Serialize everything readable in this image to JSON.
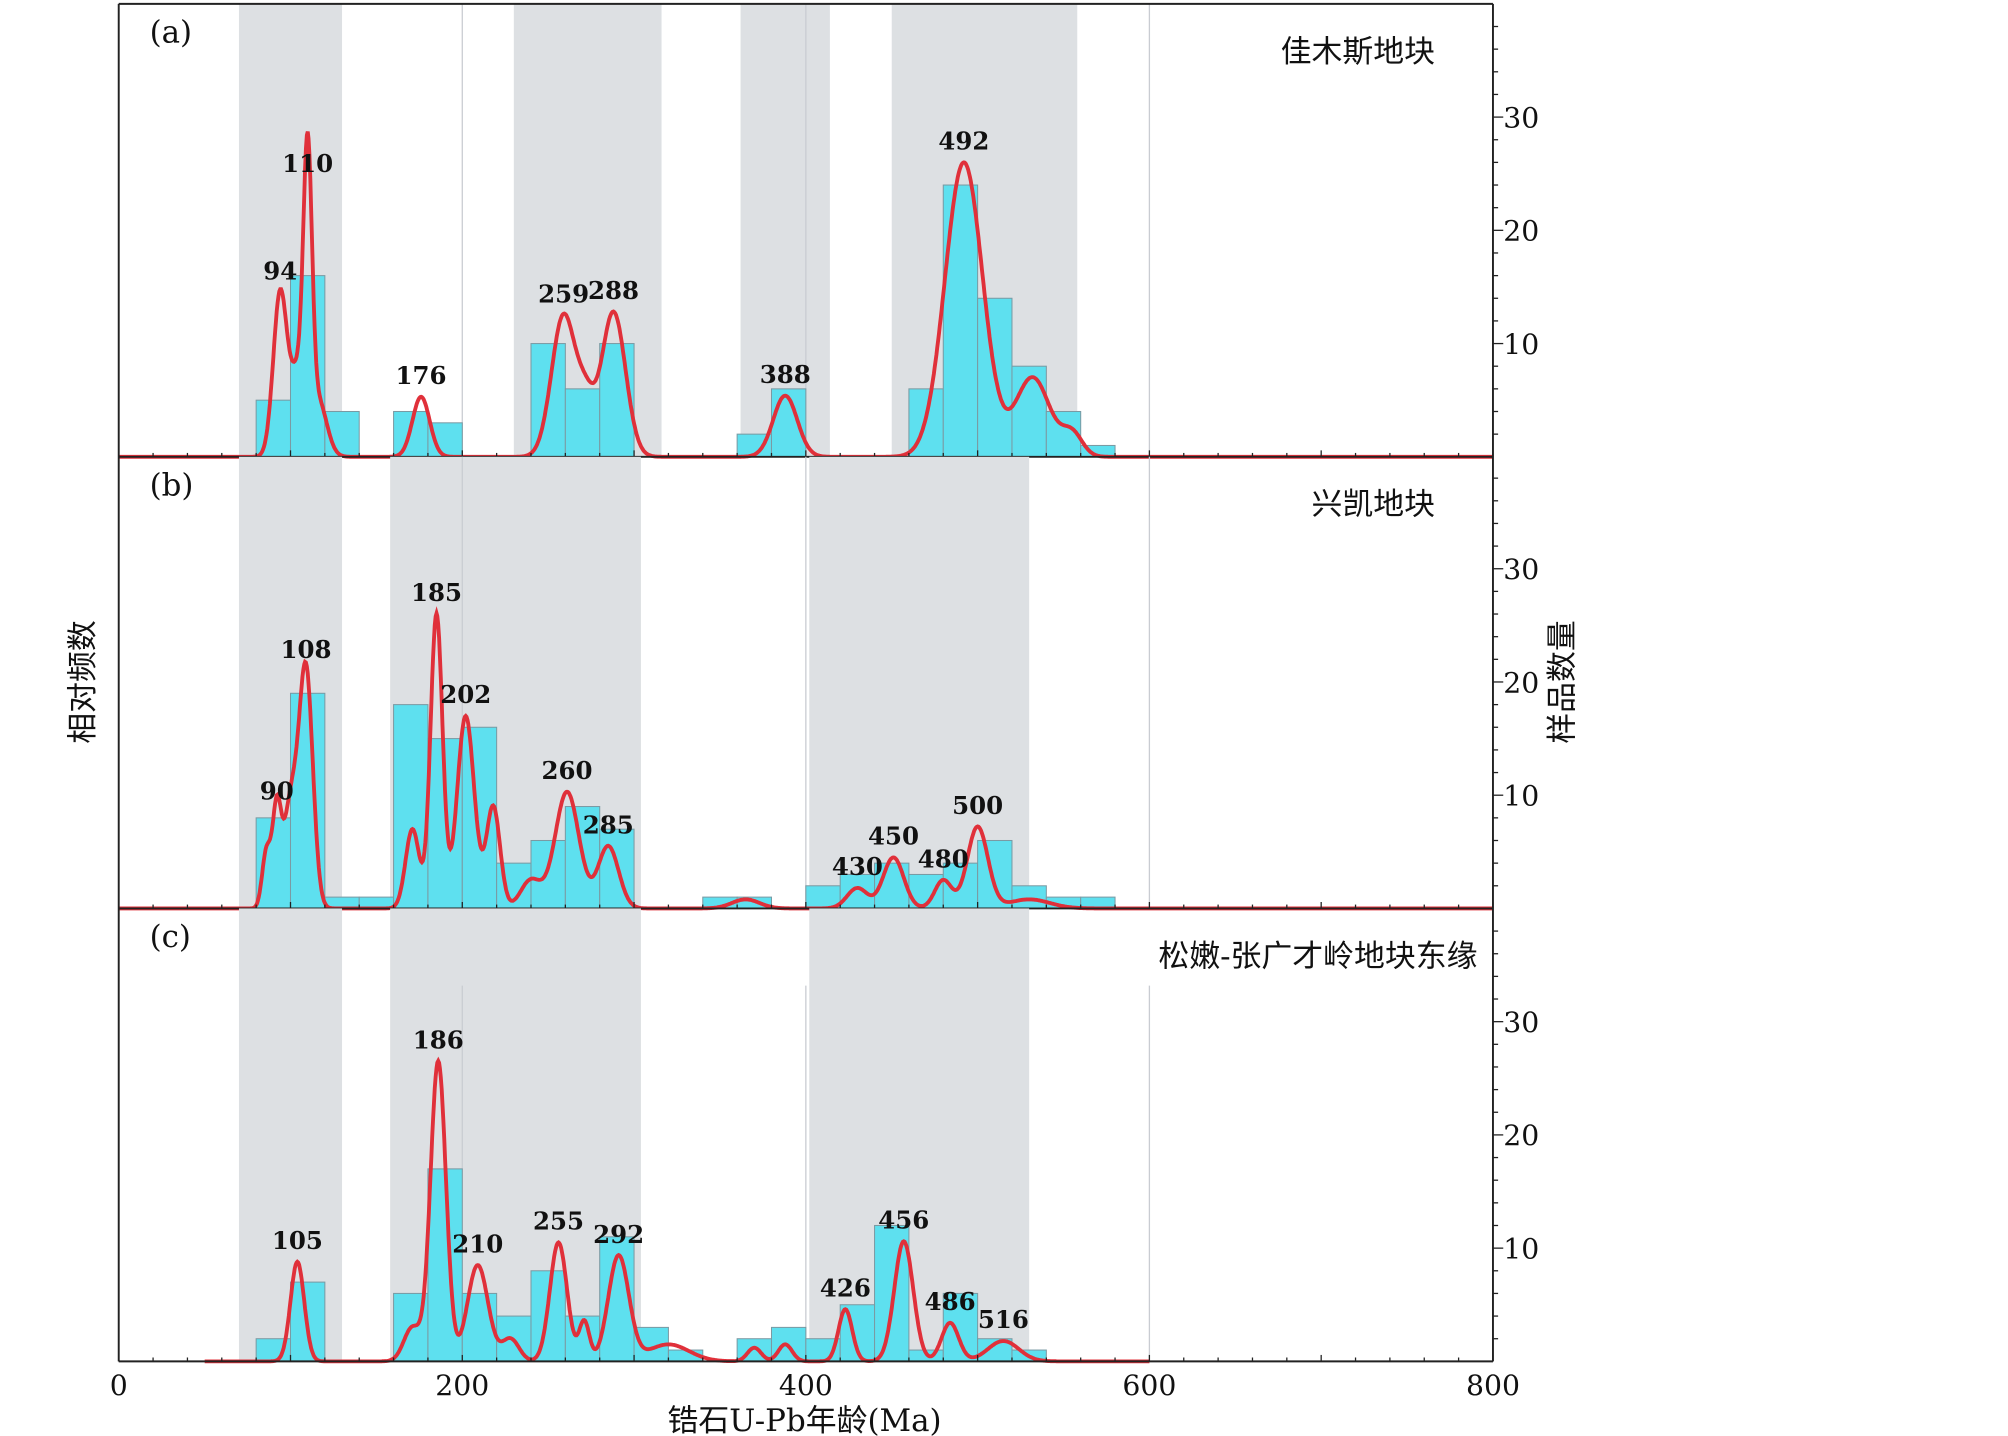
{
  "chart_data": {
    "type": "bar",
    "xlabel": "锆石U-Pb年龄(Ma)",
    "ylabel_left": "相对频数",
    "ylabel_right": "样品数量",
    "xlim": [
      0,
      800
    ],
    "x_ticks": [
      "0",
      "200",
      "400",
      "600",
      "800"
    ],
    "y_ticks": [
      "10",
      "20",
      "30"
    ],
    "ylim": [
      0,
      40
    ],
    "bin_width": 20,
    "colors": {
      "bar": "#5ee0ef",
      "curve": "#e0303a",
      "band": "#dde0e3"
    },
    "panels": [
      {
        "label": "(a)",
        "title": "佳木斯地块",
        "bands": [
          [
            70,
            130
          ],
          [
            230,
            316
          ],
          [
            362,
            414
          ],
          [
            450,
            558
          ]
        ],
        "curve_range": [
          0,
          800
        ],
        "bins": [
          [
            80,
            5
          ],
          [
            100,
            16
          ],
          [
            120,
            4
          ],
          [
            160,
            4
          ],
          [
            180,
            3
          ],
          [
            240,
            10
          ],
          [
            260,
            6
          ],
          [
            280,
            10
          ],
          [
            360,
            2
          ],
          [
            380,
            6
          ],
          [
            460,
            6
          ],
          [
            480,
            24
          ],
          [
            500,
            14
          ],
          [
            520,
            8
          ],
          [
            540,
            4
          ],
          [
            560,
            1
          ]
        ],
        "peaks": [
          {
            "age": 94,
            "rel": 14.5,
            "w": 4,
            "label": "94"
          },
          {
            "age": 110,
            "rel": 24,
            "w": 2.5,
            "label": "110"
          },
          {
            "age": 116,
            "rel": 5,
            "w": 5
          },
          {
            "age": 104,
            "rel": 7,
            "w": 4
          },
          {
            "age": 176,
            "rel": 5.3,
            "w": 5,
            "label": "176"
          },
          {
            "age": 259,
            "rel": 12.5,
            "w": 7,
            "label": "259"
          },
          {
            "age": 288,
            "rel": 12.8,
            "w": 7,
            "label": "288"
          },
          {
            "age": 272,
            "rel": 4,
            "w": 5
          },
          {
            "age": 388,
            "rel": 5.4,
            "w": 7,
            "label": "388"
          },
          {
            "age": 492,
            "rel": 26,
            "w": 11,
            "label": "492"
          },
          {
            "age": 532,
            "rel": 7,
            "w": 10
          },
          {
            "age": 555,
            "rel": 2,
            "w": 6
          }
        ]
      },
      {
        "label": "(b)",
        "title": "兴凯地块",
        "bands": [
          [
            70,
            130
          ],
          [
            158,
            304
          ],
          [
            402,
            530
          ]
        ],
        "curve_range": [
          0,
          800
        ],
        "bins": [
          [
            80,
            8
          ],
          [
            100,
            19
          ],
          [
            120,
            1
          ],
          [
            140,
            1
          ],
          [
            160,
            18
          ],
          [
            180,
            15
          ],
          [
            200,
            16
          ],
          [
            220,
            4
          ],
          [
            240,
            6
          ],
          [
            260,
            9
          ],
          [
            280,
            7
          ],
          [
            340,
            1
          ],
          [
            360,
            1
          ],
          [
            400,
            2
          ],
          [
            420,
            3
          ],
          [
            440,
            4
          ],
          [
            460,
            3
          ],
          [
            480,
            4
          ],
          [
            500,
            6
          ],
          [
            520,
            2
          ],
          [
            540,
            1
          ],
          [
            560,
            1
          ]
        ],
        "peaks": [
          {
            "age": 86,
            "rel": 5,
            "w": 2.5
          },
          {
            "age": 92,
            "rel": 8.5,
            "w": 2.5,
            "label": "90"
          },
          {
            "age": 100,
            "rel": 9,
            "w": 4
          },
          {
            "age": 109,
            "rel": 21,
            "w": 4,
            "label": "108"
          },
          {
            "age": 171,
            "rel": 7,
            "w": 4
          },
          {
            "age": 185,
            "rel": 26,
            "w": 3.5,
            "label": "185"
          },
          {
            "age": 202,
            "rel": 17,
            "w": 5,
            "label": "202"
          },
          {
            "age": 218,
            "rel": 9,
            "w": 4
          },
          {
            "age": 240,
            "rel": 2.5,
            "w": 6
          },
          {
            "age": 261,
            "rel": 10.3,
            "w": 7,
            "label": "260"
          },
          {
            "age": 285,
            "rel": 5.5,
            "w": 6,
            "label": "285"
          },
          {
            "age": 365,
            "rel": 0.8,
            "w": 8
          },
          {
            "age": 430,
            "rel": 1.8,
            "w": 6,
            "label": "430"
          },
          {
            "age": 451,
            "rel": 4.5,
            "w": 6,
            "label": "450"
          },
          {
            "age": 480,
            "rel": 2.5,
            "w": 5,
            "label": "480"
          },
          {
            "age": 500,
            "rel": 7.2,
            "w": 6,
            "label": "500"
          },
          {
            "age": 530,
            "rel": 0.8,
            "w": 12
          }
        ]
      },
      {
        "label": "(c)",
        "title": "松嫩-张广才岭地块东缘",
        "bands": [
          [
            70,
            130
          ],
          [
            158,
            304
          ],
          [
            402,
            530
          ]
        ],
        "curve_range": [
          50,
          600
        ],
        "bins": [
          [
            80,
            2
          ],
          [
            100,
            7
          ],
          [
            160,
            6
          ],
          [
            180,
            17
          ],
          [
            200,
            6
          ],
          [
            220,
            4
          ],
          [
            240,
            8
          ],
          [
            260,
            4
          ],
          [
            280,
            11
          ],
          [
            300,
            3
          ],
          [
            320,
            1
          ],
          [
            360,
            2
          ],
          [
            380,
            3
          ],
          [
            400,
            2
          ],
          [
            420,
            5
          ],
          [
            440,
            12
          ],
          [
            460,
            1
          ],
          [
            480,
            6
          ],
          [
            500,
            2
          ],
          [
            520,
            1
          ]
        ],
        "peaks": [
          {
            "age": 104,
            "rel": 8.8,
            "w": 4,
            "label": "105"
          },
          {
            "age": 171,
            "rel": 3,
            "w": 5
          },
          {
            "age": 186,
            "rel": 26.5,
            "w": 4.5,
            "label": "186"
          },
          {
            "age": 209,
            "rel": 8.5,
            "w": 6,
            "label": "210"
          },
          {
            "age": 228,
            "rel": 2,
            "w": 5
          },
          {
            "age": 256,
            "rel": 10.5,
            "w": 5,
            "label": "255"
          },
          {
            "age": 271,
            "rel": 3.5,
            "w": 3
          },
          {
            "age": 291,
            "rel": 9.3,
            "w": 6,
            "label": "292"
          },
          {
            "age": 320,
            "rel": 1.5,
            "w": 12
          },
          {
            "age": 370,
            "rel": 1.2,
            "w": 4
          },
          {
            "age": 388,
            "rel": 1.5,
            "w": 4
          },
          {
            "age": 423,
            "rel": 4.6,
            "w": 4,
            "label": "426"
          },
          {
            "age": 457,
            "rel": 10.6,
            "w": 5.5,
            "label": "456"
          },
          {
            "age": 484,
            "rel": 3.4,
            "w": 5,
            "label": "486"
          },
          {
            "age": 515,
            "rel": 1.8,
            "w": 9,
            "label": "516"
          }
        ]
      }
    ]
  }
}
